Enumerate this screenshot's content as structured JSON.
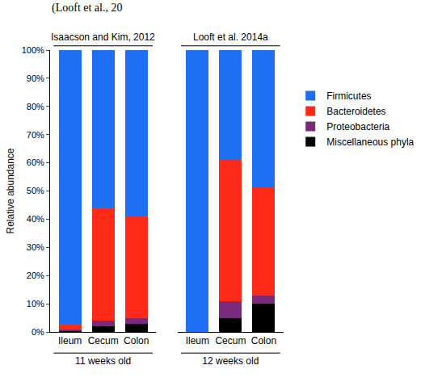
{
  "chart_data": [
    {
      "type": "bar",
      "stacked": true,
      "title": "Isaacson and Kim, 2012",
      "xlabel": "11 weeks old",
      "ylabel": "Relative abundance",
      "annotations": [
        "(Looft et al., 20"
      ],
      "categories": [
        "Ileum",
        "Cecum",
        "Colon"
      ],
      "series": [
        {
          "name": "Miscellaneous phyla",
          "color": "#000000",
          "values": [
            0.3,
            2,
            3
          ]
        },
        {
          "name": "Proteobacteria",
          "color": "#7a2a7c",
          "values": [
            0.7,
            2,
            2
          ]
        },
        {
          "name": "Bacteroidetes",
          "color": "#ff2a17",
          "values": [
            2,
            40,
            36
          ]
        },
        {
          "name": "Firmicutes",
          "color": "#1f6ff2",
          "values": [
            97,
            56,
            59
          ]
        }
      ],
      "ylim": [
        0,
        100
      ],
      "yticks": [
        {
          "value": 0,
          "label": "0%"
        },
        {
          "value": 10,
          "label": "10%"
        },
        {
          "value": 20,
          "label": "20%"
        },
        {
          "value": 30,
          "label": "30%"
        },
        {
          "value": 40,
          "label": "40%"
        },
        {
          "value": 50,
          "label": "50%"
        },
        {
          "value": 60,
          "label": "60%"
        },
        {
          "value": 70,
          "label": "70%"
        },
        {
          "value": 80,
          "label": "80%"
        },
        {
          "value": 90,
          "label": "90%"
        },
        {
          "value": 100,
          "label": "100%"
        }
      ],
      "grid": false
    },
    {
      "type": "bar",
      "stacked": true,
      "title": "Looft et al. 2014a",
      "xlabel": "12 weeks old",
      "categories": [
        "Ileum",
        "Cecum",
        "Colon"
      ],
      "series": [
        {
          "name": "Miscellaneous phyla",
          "color": "#000000",
          "values": [
            0,
            5,
            10
          ]
        },
        {
          "name": "Proteobacteria",
          "color": "#7a2a7c",
          "values": [
            0,
            6,
            3
          ]
        },
        {
          "name": "Bacteroidetes",
          "color": "#ff2a17",
          "values": [
            0,
            50,
            38.5
          ]
        },
        {
          "name": "Firmicutes",
          "color": "#1f6ff2",
          "values": [
            100,
            39,
            48.5
          ]
        }
      ],
      "ylim": [
        0,
        100
      ],
      "tick_labels": "x",
      "legend": "right",
      "grid": false
    }
  ]
}
